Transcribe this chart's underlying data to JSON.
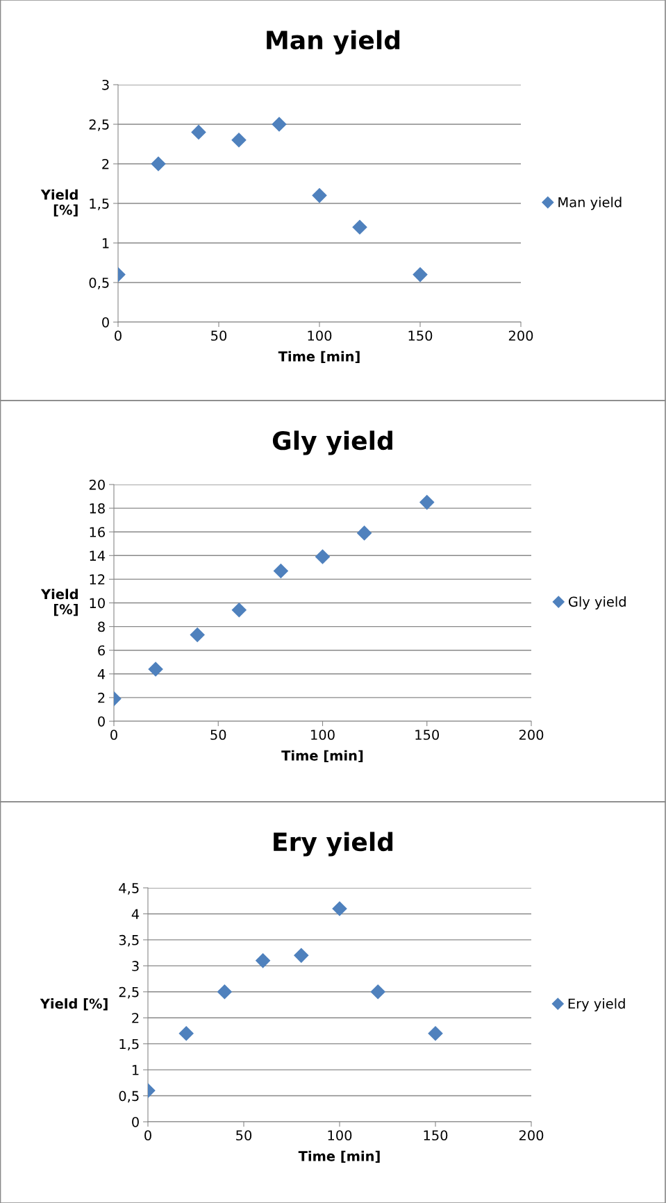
{
  "chart_data": [
    {
      "type": "scatter",
      "title": "Man yield",
      "xlabel": "Time [min]",
      "ylabel": "Yield\n[%]",
      "marker": "diamond",
      "grid": "y",
      "legend": "right",
      "series": [
        {
          "name": "Man yield",
          "color": "#4f81bd",
          "x": [
            0,
            20,
            40,
            60,
            80,
            100,
            120,
            150
          ],
          "values": [
            0.6,
            2.0,
            2.4,
            2.3,
            2.5,
            1.6,
            1.2,
            0.6
          ]
        }
      ],
      "xlim": [
        0,
        200
      ],
      "xticks": [
        0,
        50,
        100,
        150,
        200
      ],
      "ylim": [
        0,
        3
      ],
      "yticks": [
        0,
        {
          "value": 0.5,
          "label": "0,5"
        },
        1,
        {
          "value": 1.5,
          "label": "1,5"
        },
        2,
        {
          "value": 2.5,
          "label": "2,5"
        },
        3
      ]
    },
    {
      "type": "scatter",
      "title": "Gly yield",
      "xlabel": "Time [min]",
      "ylabel": "Yield\n[%]",
      "marker": "diamond",
      "grid": "y",
      "legend": "right",
      "series": [
        {
          "name": "Gly yield",
          "color": "#4f81bd",
          "x": [
            0,
            20,
            40,
            60,
            80,
            100,
            120,
            150
          ],
          "values": [
            1.9,
            4.4,
            7.3,
            9.4,
            12.7,
            13.9,
            15.9,
            18.5
          ]
        }
      ],
      "xlim": [
        0,
        200
      ],
      "xticks": [
        0,
        50,
        100,
        150,
        200
      ],
      "ylim": [
        0,
        20
      ],
      "yticks": [
        0,
        2,
        4,
        6,
        8,
        10,
        12,
        14,
        16,
        18,
        20
      ]
    },
    {
      "type": "scatter",
      "title": "Ery yield",
      "xlabel": "Time [min]",
      "ylabel": "Yield [%]",
      "marker": "diamond",
      "grid": "y",
      "legend": "right",
      "series": [
        {
          "name": "Ery yield",
          "color": "#4f81bd",
          "x": [
            0,
            20,
            40,
            60,
            80,
            100,
            120,
            150
          ],
          "values": [
            0.6,
            1.7,
            2.5,
            3.1,
            3.2,
            4.1,
            2.5,
            1.7
          ]
        }
      ],
      "xlim": [
        0,
        200
      ],
      "xticks": [
        0,
        50,
        100,
        150,
        200
      ],
      "ylim": [
        0,
        4.5
      ],
      "yticks": [
        0,
        {
          "value": 0.5,
          "label": "0,5"
        },
        1,
        {
          "value": 1.5,
          "label": "1,5"
        },
        2,
        {
          "value": 2.5,
          "label": "2,5"
        },
        3,
        {
          "value": 3.5,
          "label": "3,5"
        },
        4,
        {
          "value": 4.5,
          "label": "4,5"
        }
      ]
    }
  ]
}
